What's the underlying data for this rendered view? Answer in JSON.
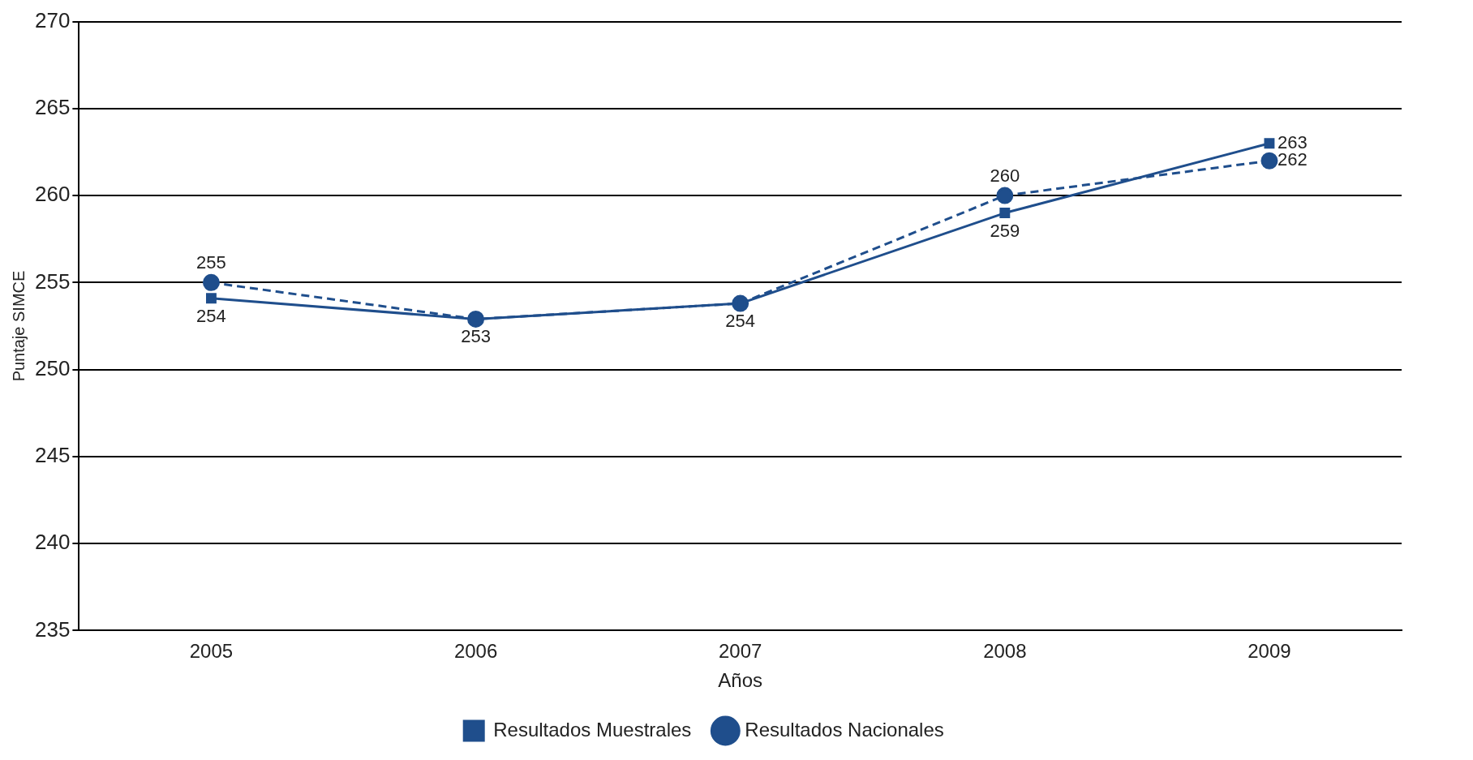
{
  "chart_data": {
    "type": "line",
    "xlabel": "Años",
    "ylabel": "Puntaje SIMCE",
    "categories": [
      "2005",
      "2006",
      "2007",
      "2008",
      "2009"
    ],
    "series": [
      {
        "name": "Resultados Muestrales",
        "color": "#1f4e8c",
        "marker": "square",
        "line_style": "solid",
        "values": [
          254.1,
          252.9,
          253.8,
          259,
          263
        ],
        "value_labels": [
          "254",
          "253",
          "254",
          "259",
          "263"
        ]
      },
      {
        "name": "Resultados Nacionales",
        "color": "#1f4e8c",
        "marker": "circle",
        "line_style": "dashed",
        "values": [
          255,
          252.9,
          253.8,
          260,
          262
        ],
        "value_labels": [
          "255",
          null,
          null,
          "260",
          "262"
        ]
      }
    ],
    "ylim": [
      235,
      270
    ],
    "yticks": [
      235,
      240,
      245,
      250,
      255,
      260,
      265,
      270
    ],
    "grid": "y",
    "legend": "bottom"
  }
}
